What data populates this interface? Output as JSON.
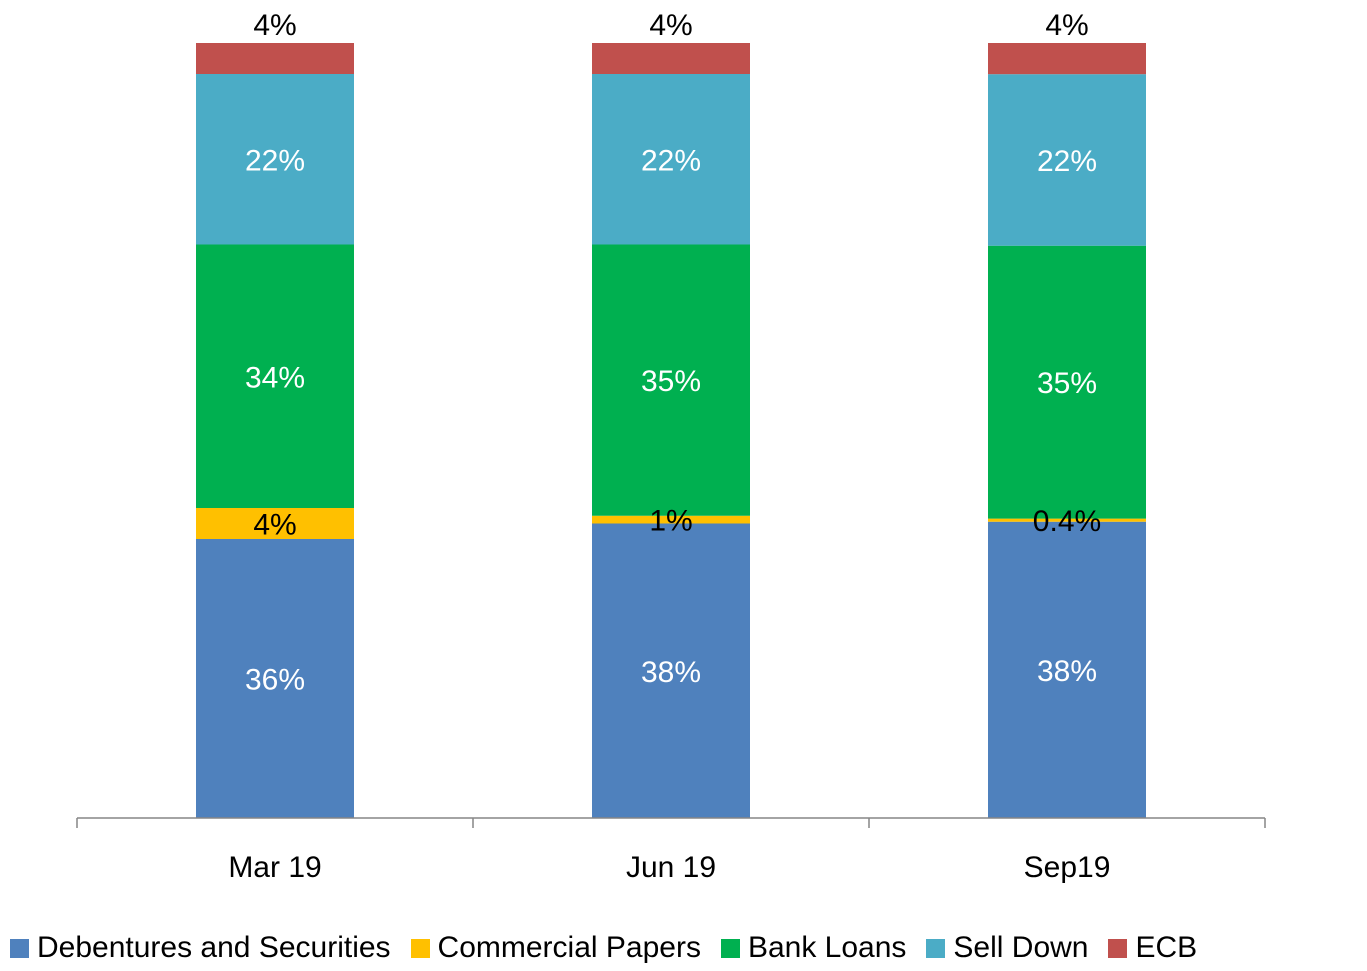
{
  "chart_data": {
    "type": "bar",
    "stacked": true,
    "categories": [
      "Mar 19",
      "Jun 19",
      "Sep19"
    ],
    "ylim": [
      0,
      100
    ],
    "grid": false,
    "legend_position": "bottom",
    "series": [
      {
        "name": "Debentures and Securities",
        "color": "#4F81BD",
        "values": [
          36,
          38,
          38
        ],
        "labels": [
          "36%",
          "38%",
          "38%"
        ]
      },
      {
        "name": "Commercial Papers",
        "color": "#FFC000",
        "values": [
          4,
          1,
          0.4
        ],
        "labels": [
          "4%",
          "1%",
          "0.4%"
        ]
      },
      {
        "name": "Bank Loans",
        "color": "#00B050",
        "values": [
          34,
          35,
          35
        ],
        "labels": [
          "34%",
          "35%",
          "35%"
        ]
      },
      {
        "name": "Sell Down",
        "color": "#4BACC6",
        "values": [
          22,
          22,
          22
        ],
        "labels": [
          "22%",
          "22%",
          "22%"
        ]
      },
      {
        "name": "ECB",
        "color": "#C0504D",
        "values": [
          4,
          4,
          4
        ],
        "labels": [
          "4%",
          "4%",
          "4%"
        ]
      }
    ]
  }
}
